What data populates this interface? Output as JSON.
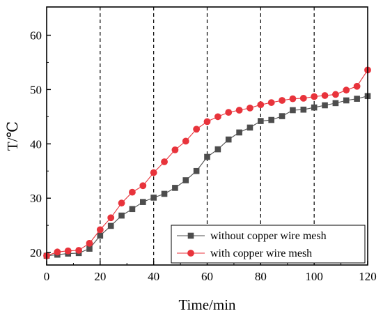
{
  "chart_data": {
    "type": "line",
    "xlabel": "Time/min",
    "ylabel": "T/℃",
    "xlim": [
      0,
      120
    ],
    "ylim": [
      17.7,
      65.2
    ],
    "xticks": [
      0,
      20,
      40,
      60,
      80,
      100,
      120
    ],
    "yticks": [
      20,
      30,
      40,
      50,
      60
    ],
    "vlines": [
      20,
      40,
      60,
      80,
      100
    ],
    "legend_position": "bottom-right",
    "series": [
      {
        "name": "without copper wire mesh",
        "marker": "square",
        "color": "#4d4d4d",
        "x": [
          0,
          4,
          8,
          12,
          16,
          20,
          24,
          28,
          32,
          36,
          40,
          44,
          48,
          52,
          56,
          60,
          64,
          68,
          72,
          76,
          80,
          84,
          88,
          92,
          96,
          100,
          104,
          108,
          112,
          116,
          120
        ],
        "y": [
          19.4,
          19.6,
          19.8,
          19.9,
          20.7,
          23.1,
          24.9,
          26.8,
          28.0,
          29.3,
          30.1,
          30.8,
          31.9,
          33.3,
          35.0,
          37.6,
          39.0,
          40.8,
          42.1,
          43.0,
          44.2,
          44.4,
          45.1,
          46.2,
          46.3,
          46.7,
          47.1,
          47.5,
          48.0,
          48.3,
          48.8
        ]
      },
      {
        "name": "with copper wire mesh",
        "marker": "circle",
        "color": "#e8333b",
        "x": [
          0,
          4,
          8,
          12,
          16,
          20,
          24,
          28,
          32,
          36,
          40,
          44,
          48,
          52,
          56,
          60,
          64,
          68,
          72,
          76,
          80,
          84,
          88,
          92,
          96,
          100,
          104,
          108,
          112,
          116,
          120
        ],
        "y": [
          19.4,
          20.1,
          20.3,
          20.4,
          21.7,
          24.2,
          26.4,
          29.1,
          31.1,
          32.3,
          34.7,
          36.7,
          38.9,
          40.5,
          42.7,
          44.1,
          45.0,
          45.8,
          46.2,
          46.6,
          47.2,
          47.6,
          48.0,
          48.3,
          48.4,
          48.7,
          48.9,
          49.1,
          49.9,
          50.6,
          53.6
        ]
      }
    ]
  }
}
